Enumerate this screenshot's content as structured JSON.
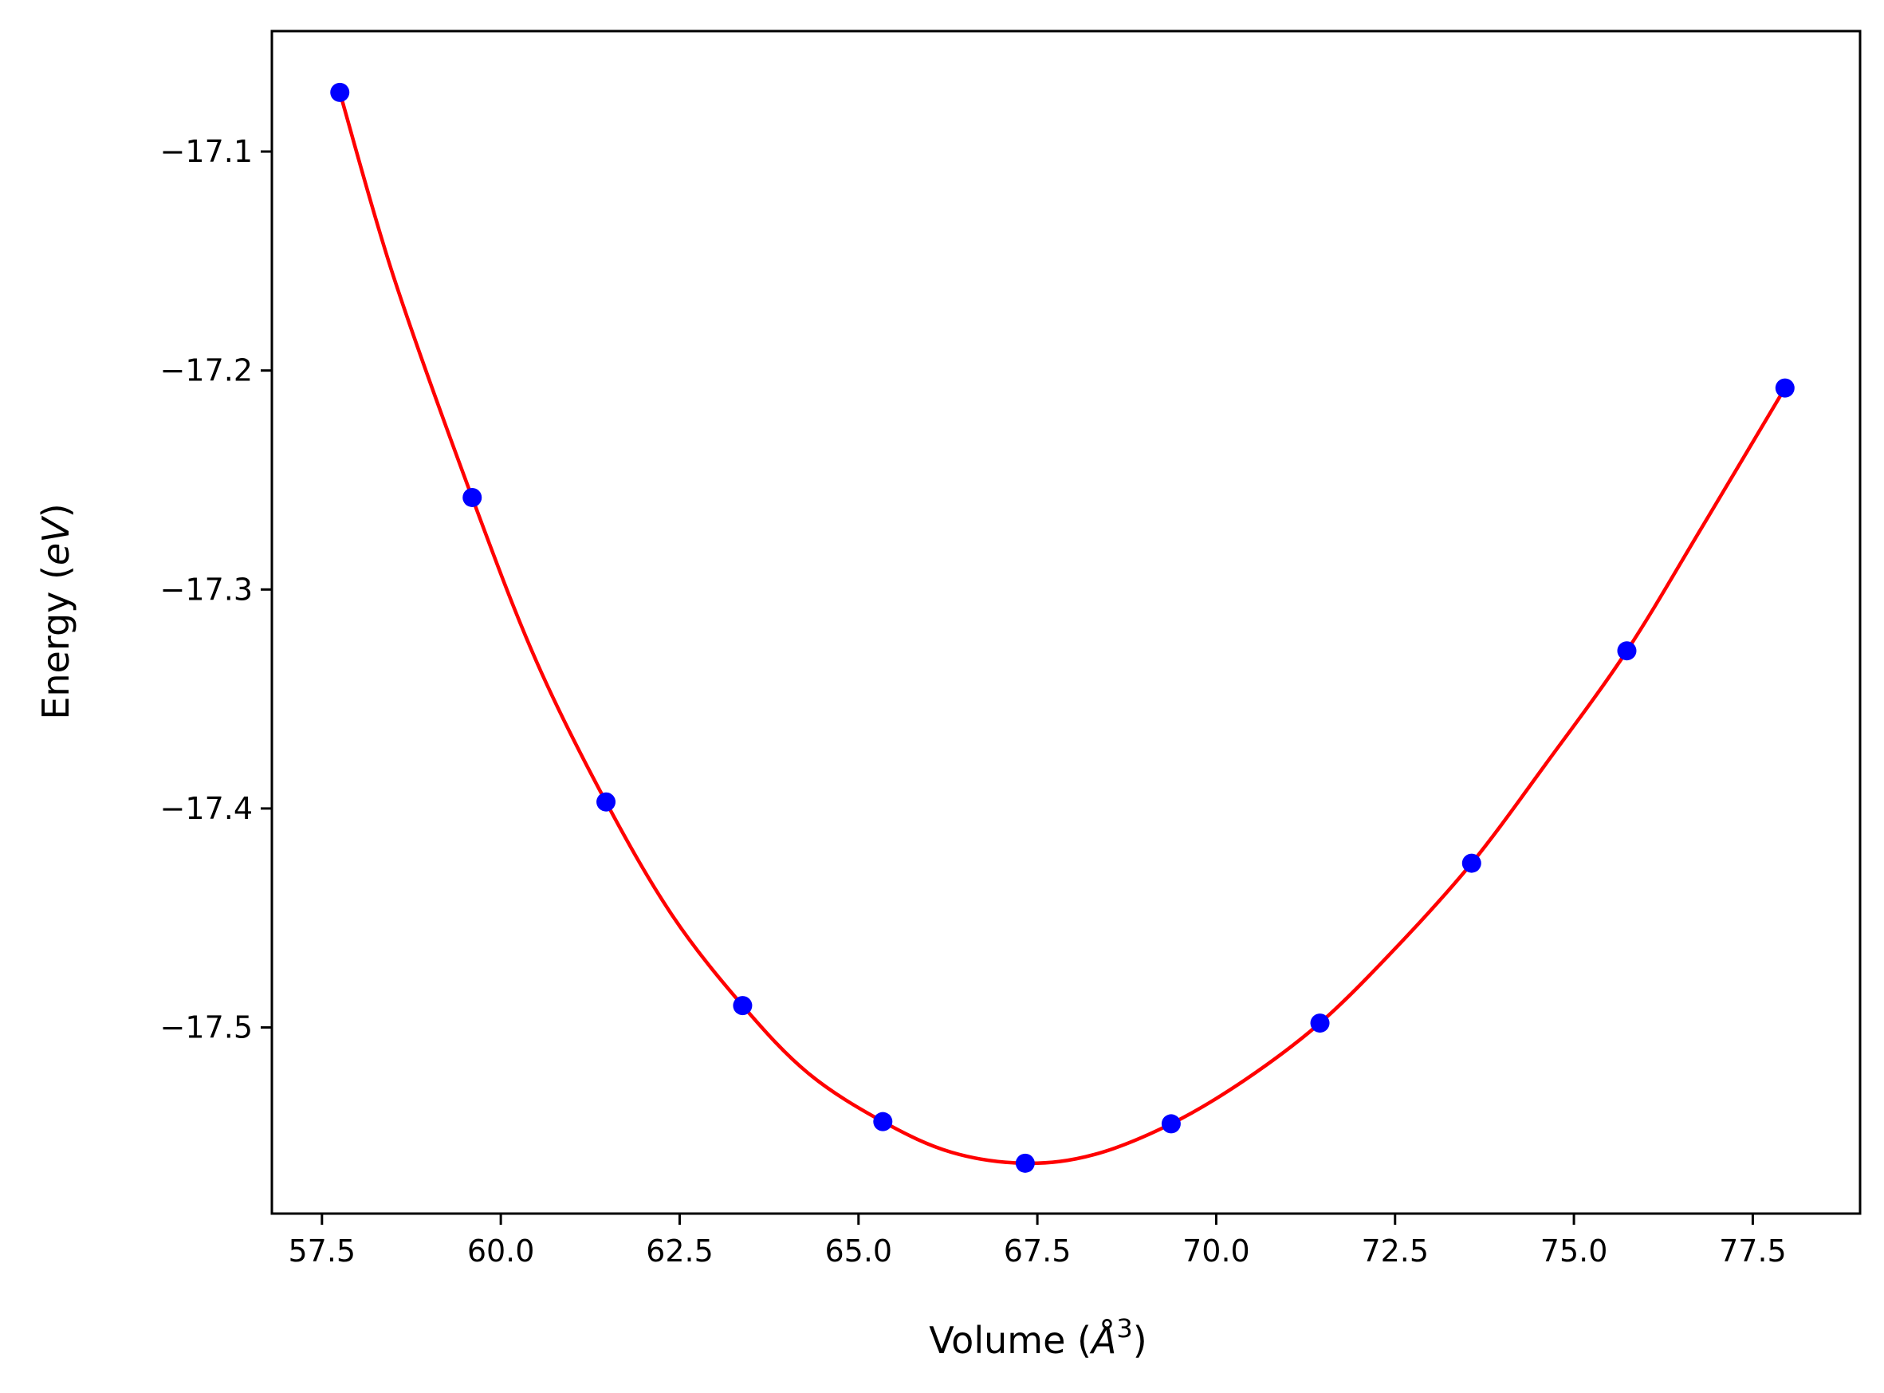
{
  "chart_data": {
    "type": "scatter",
    "title": "",
    "xlabel": {
      "prefix": "Volume (",
      "symbol": "Å",
      "exponent": "3",
      "suffix": ")"
    },
    "ylabel": {
      "prefix": "Energy (",
      "unit": "eV",
      "suffix": ")"
    },
    "xlim": [
      56.8,
      79.0
    ],
    "ylim": [
      -17.585,
      -17.045
    ],
    "xticks": [
      57.5,
      60.0,
      62.5,
      65.0,
      67.5,
      70.0,
      72.5,
      75.0,
      77.5
    ],
    "xtick_labels": [
      "57.5",
      "60.0",
      "62.5",
      "65.0",
      "67.5",
      "70.0",
      "72.5",
      "75.0",
      "77.5"
    ],
    "yticks": [
      -17.1,
      -17.2,
      -17.3,
      -17.4,
      -17.5
    ],
    "ytick_labels": [
      "−17.1",
      "−17.2",
      "−17.3",
      "−17.4",
      "−17.5"
    ],
    "grid": false,
    "legend": "none",
    "series": [
      {
        "kind": "points",
        "color": "#0000ff",
        "x": [
          57.75,
          59.6,
          61.47,
          63.38,
          65.34,
          67.33,
          69.37,
          71.45,
          73.57,
          75.74,
          77.95
        ],
        "y": [
          -17.073,
          -17.258,
          -17.397,
          -17.49,
          -17.543,
          -17.562,
          -17.544,
          -17.498,
          -17.425,
          -17.328,
          -17.208
        ]
      },
      {
        "kind": "fit-curve",
        "color": "#ff0000",
        "x": [
          57.75,
          58.5,
          59.6,
          60.5,
          61.47,
          62.4,
          63.38,
          64.3,
          65.34,
          66.3,
          67.33,
          68.3,
          69.37,
          70.4,
          71.45,
          72.5,
          73.57,
          74.6,
          75.74,
          76.8,
          77.95
        ],
        "y": [
          -17.073,
          -17.157,
          -17.258,
          -17.333,
          -17.397,
          -17.449,
          -17.49,
          -17.521,
          -17.543,
          -17.557,
          -17.562,
          -17.558,
          -17.544,
          -17.524,
          -17.498,
          -17.464,
          -17.425,
          -17.38,
          -17.328,
          -17.271,
          -17.208
        ]
      }
    ]
  }
}
